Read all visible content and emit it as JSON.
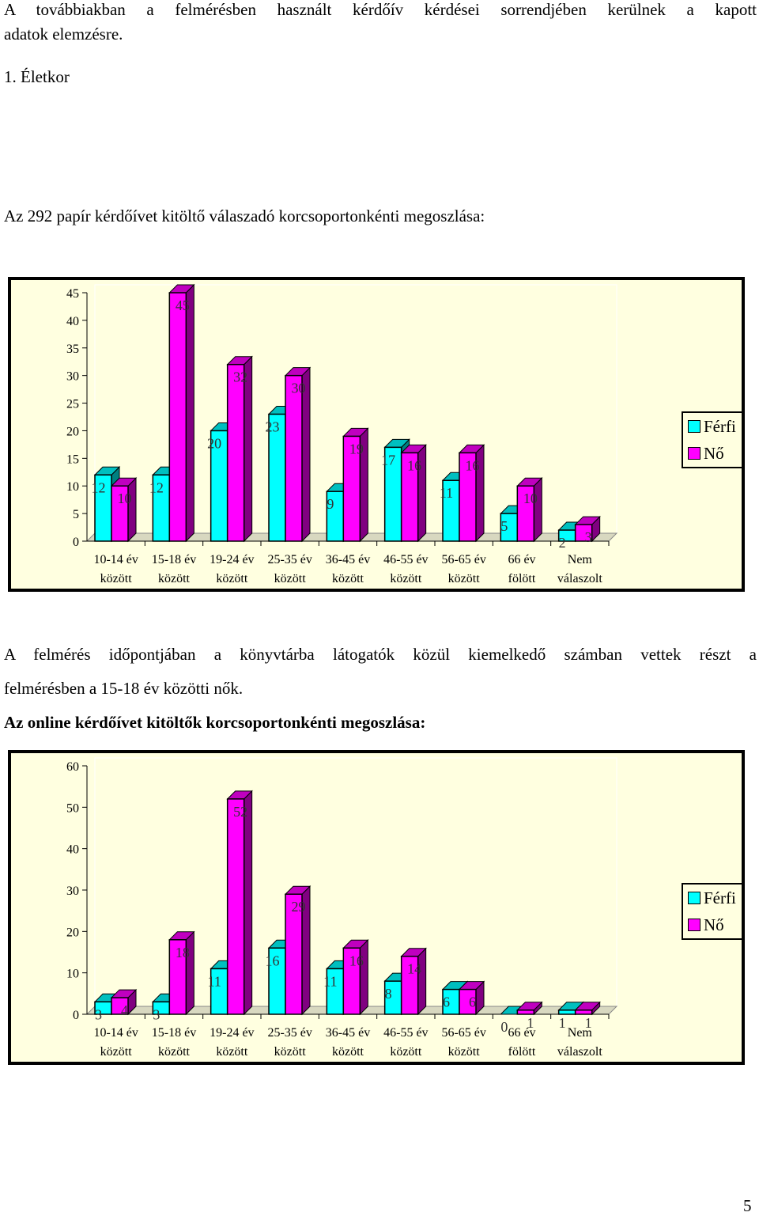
{
  "intro": {
    "line1": "A továbbiakban a felmérésben használt kérdőív kérdései sorrendjében kerülnek a kapott",
    "line2": "adatok elemzésre.",
    "heading": "1. Életkor"
  },
  "paper_caption": "Az 292 papír kérdőívet kitöltő válaszadó korcsoportonkénti megoszlása:",
  "finding": {
    "line1": "A felmérés időpontjában a könyvtárba látogatók közül kiemelkedő számban vettek részt a",
    "line2": "felmérésben a 15-18 év közötti nők."
  },
  "online_caption": "Az online kérdőívet kitöltők korcsoportonkénti megoszlása:",
  "legend": {
    "male": "Férfi",
    "female": "Nő"
  },
  "colors": {
    "male": "#00ffff",
    "female": "#ff00ff",
    "plot_bg": "#ffffe0",
    "border": "#000000"
  },
  "page_number": "5",
  "chart_data": [
    {
      "type": "bar",
      "categories": [
        [
          "10-14 év",
          "között"
        ],
        [
          "15-18 év",
          "között"
        ],
        [
          "19-24 év",
          "között"
        ],
        [
          "25-35 év",
          "között"
        ],
        [
          "36-45 év",
          "között"
        ],
        [
          "46-55 év",
          "között"
        ],
        [
          "56-65 év",
          "között"
        ],
        [
          "66 év",
          "fölött"
        ],
        [
          "Nem",
          "válaszolt"
        ]
      ],
      "series": [
        {
          "name": "Férfi",
          "values": [
            12,
            12,
            20,
            23,
            9,
            17,
            11,
            5,
            2
          ]
        },
        {
          "name": "Nő",
          "values": [
            10,
            45,
            32,
            30,
            19,
            16,
            16,
            10,
            3
          ]
        }
      ],
      "ylim": [
        0,
        45
      ],
      "yticks": [
        0,
        5,
        10,
        15,
        20,
        25,
        30,
        35,
        40,
        45
      ],
      "grid": false,
      "legend": "right"
    },
    {
      "type": "bar",
      "categories": [
        [
          "10-14 év",
          "között"
        ],
        [
          "15-18 év",
          "között"
        ],
        [
          "19-24 év",
          "között"
        ],
        [
          "25-35 év",
          "között"
        ],
        [
          "36-45 év",
          "között"
        ],
        [
          "46-55 év",
          "között"
        ],
        [
          "56-65 év",
          "között"
        ],
        [
          "66 év",
          "fölött"
        ],
        [
          "Nem",
          "válaszolt"
        ]
      ],
      "series": [
        {
          "name": "Férfi",
          "values": [
            3,
            3,
            11,
            16,
            11,
            8,
            6,
            0,
            1
          ]
        },
        {
          "name": "Nő",
          "values": [
            4,
            18,
            52,
            29,
            16,
            14,
            6,
            1,
            1
          ]
        }
      ],
      "ylim": [
        0,
        60
      ],
      "yticks": [
        0,
        10,
        20,
        30,
        40,
        50,
        60
      ],
      "grid": false,
      "legend": "right"
    }
  ]
}
